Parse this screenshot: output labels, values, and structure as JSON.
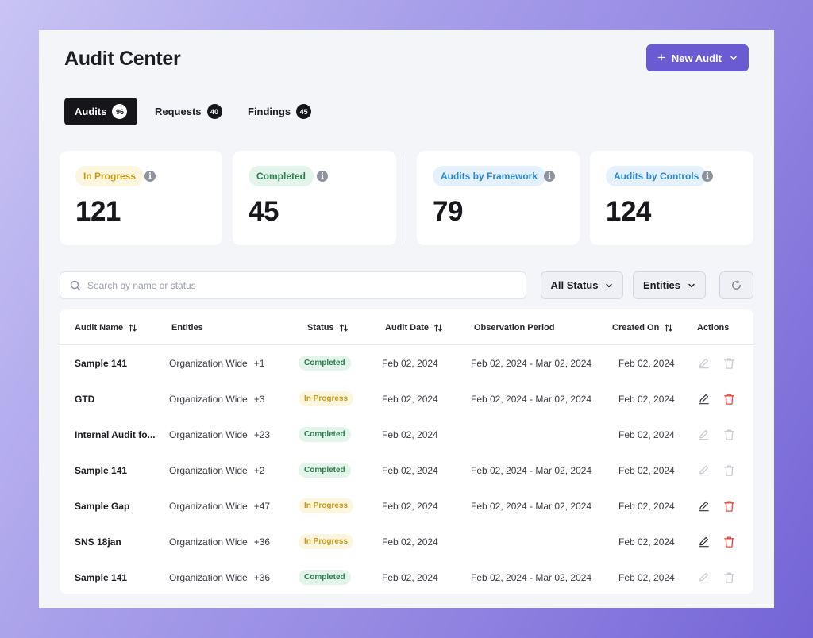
{
  "header": {
    "title": "Audit Center",
    "new_audit_label": "New Audit"
  },
  "tabs": [
    {
      "label": "Audits",
      "count": "96",
      "active": true
    },
    {
      "label": "Requests",
      "count": "40",
      "active": false
    },
    {
      "label": "Findings",
      "count": "45",
      "active": false
    }
  ],
  "stats": [
    {
      "label": "In Progress",
      "value": "121"
    },
    {
      "label": "Completed",
      "value": "45"
    },
    {
      "label": "Audits by Framework",
      "value": "79"
    },
    {
      "label": "Audits by Controls",
      "value": "124"
    }
  ],
  "filters": {
    "search_placeholder": "Search by name or status",
    "status_label": "All Status",
    "entities_label": "Entities"
  },
  "table": {
    "columns": {
      "name": "Audit Name",
      "entities": "Entities",
      "status": "Status",
      "audit_date": "Audit Date",
      "observation": "Observation Period",
      "created_on": "Created On",
      "actions": "Actions"
    },
    "rows": [
      {
        "name": "Sample 141",
        "entity": "Organization Wide",
        "more": "+1",
        "status": "Completed",
        "audit_date": "Feb 02, 2024",
        "observation": "Feb 02, 2024 - Mar 02, 2024",
        "created": "Feb 02, 2024",
        "actions_enabled": false
      },
      {
        "name": "GTD",
        "entity": "Organization Wide",
        "more": "+3",
        "status": "In Progress",
        "audit_date": "Feb 02, 2024",
        "observation": "Feb 02, 2024 - Mar 02, 2024",
        "created": "Feb 02, 2024",
        "actions_enabled": true
      },
      {
        "name": "Internal Audit fo...",
        "entity": "Organization Wide",
        "more": "+23",
        "status": "Completed",
        "audit_date": "Feb 02, 2024",
        "observation": "",
        "created": "Feb 02, 2024",
        "actions_enabled": false
      },
      {
        "name": "Sample 141",
        "entity": "Organization Wide",
        "more": "+2",
        "status": "Completed",
        "audit_date": "Feb 02, 2024",
        "observation": "Feb 02, 2024 - Mar 02, 2024",
        "created": "Feb 02, 2024",
        "actions_enabled": false
      },
      {
        "name": "Sample Gap",
        "entity": "Organization Wide",
        "more": "+47",
        "status": "In Progress",
        "audit_date": "Feb 02, 2024",
        "observation": "Feb 02, 2024 - Mar 02, 2024",
        "created": "Feb 02, 2024",
        "actions_enabled": true
      },
      {
        "name": "SNS 18jan",
        "entity": "Organization Wide",
        "more": "+36",
        "status": "In Progress",
        "audit_date": "Feb 02, 2024",
        "observation": "",
        "created": "Feb 02, 2024",
        "actions_enabled": true
      },
      {
        "name": "Sample 141",
        "entity": "Organization Wide",
        "more": "+36",
        "status": "Completed",
        "audit_date": "Feb 02, 2024",
        "observation": "Feb 02, 2024 - Mar 02, 2024",
        "created": "Feb 02, 2024",
        "actions_enabled": false
      }
    ]
  },
  "colors": {
    "accent": "#6b5bd2",
    "completed": "#2e7d4d",
    "in_progress": "#c99a1a",
    "delete_active": "#e5483c"
  },
  "icons": [
    "plus-icon",
    "chevron-down-icon",
    "info-icon",
    "search-icon",
    "refresh-icon",
    "sort-icon",
    "edit-icon",
    "trash-icon"
  ]
}
